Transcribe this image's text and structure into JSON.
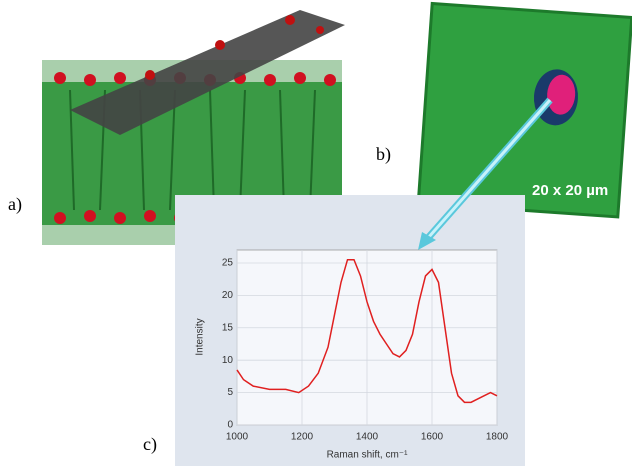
{
  "panels": {
    "a": "a)",
    "b": "b)",
    "c": "c)"
  },
  "image_scale": "20 x 20 µm",
  "chart_data": {
    "type": "line",
    "xlabel": "Raman shift, cm⁻¹",
    "ylabel": "Intensity",
    "x": [
      1000,
      1020,
      1050,
      1100,
      1150,
      1190,
      1220,
      1250,
      1280,
      1300,
      1320,
      1340,
      1360,
      1380,
      1400,
      1420,
      1440,
      1460,
      1480,
      1500,
      1520,
      1540,
      1560,
      1580,
      1600,
      1620,
      1640,
      1660,
      1680,
      1700,
      1720,
      1740,
      1760,
      1780,
      1800
    ],
    "series": [
      {
        "color": "#e02020",
        "values": [
          8.5,
          7,
          6,
          5.5,
          5.5,
          5,
          6,
          8,
          12,
          17,
          22,
          25.5,
          25.5,
          23,
          19,
          16,
          14,
          12.5,
          11,
          10.5,
          11.5,
          14,
          19,
          23,
          24,
          22,
          15,
          8,
          4.5,
          3.5,
          3.5,
          4,
          4.5,
          5,
          4.5
        ]
      }
    ],
    "xlim": [
      1000,
      1800
    ],
    "ylim": [
      0,
      27
    ],
    "xticks": [
      1000,
      1200,
      1400,
      1600,
      1800
    ],
    "yticks": [
      0,
      5,
      10,
      15,
      20,
      25
    ],
    "grid": true
  }
}
